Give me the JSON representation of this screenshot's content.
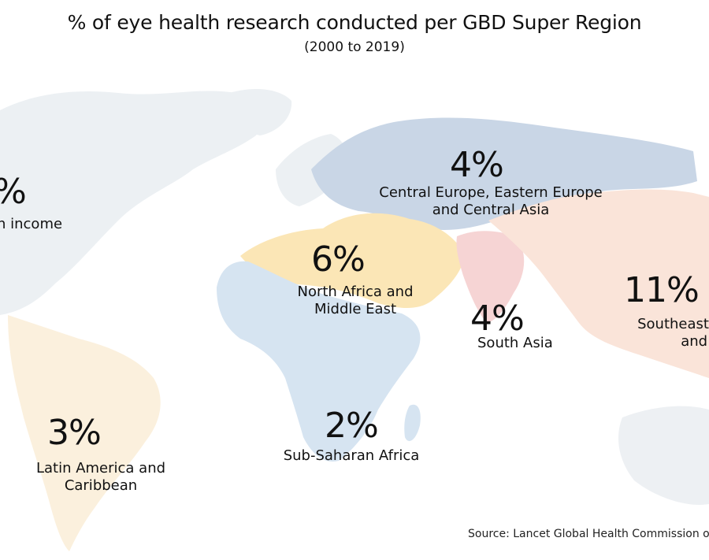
{
  "title": "% of eye health research conducted per GBD Super Region",
  "subtitle": "(2000 to 2019)",
  "regions": {
    "high_income": {
      "value": "%",
      "label": "n income"
    },
    "central_europe": {
      "value": "4%",
      "label": "Central Europe, Eastern Europe\nand Central Asia"
    },
    "north_africa": {
      "value": "6%",
      "label": "North Africa and\nMiddle East"
    },
    "south_asia": {
      "value": "4%",
      "label": "South Asia"
    },
    "southeast_asia": {
      "value": "11%",
      "label": "Southeast A\nand O"
    },
    "latin_america": {
      "value": "3%",
      "label": "Latin America and\nCaribbean"
    },
    "sub_saharan": {
      "value": "2%",
      "label": "Sub-Saharan Africa"
    }
  },
  "colors": {
    "high_income": "#ecf0f3",
    "central_europe": "#c9d6e6",
    "north_africa": "#fbe6b6",
    "south_asia": "#f6d4d4",
    "southeast_asia": "#fae4d9",
    "latin_america": "#fbf0dd",
    "sub_saharan": "#d6e4f1"
  },
  "source": "Source: Lancet Global Health Commission o"
}
